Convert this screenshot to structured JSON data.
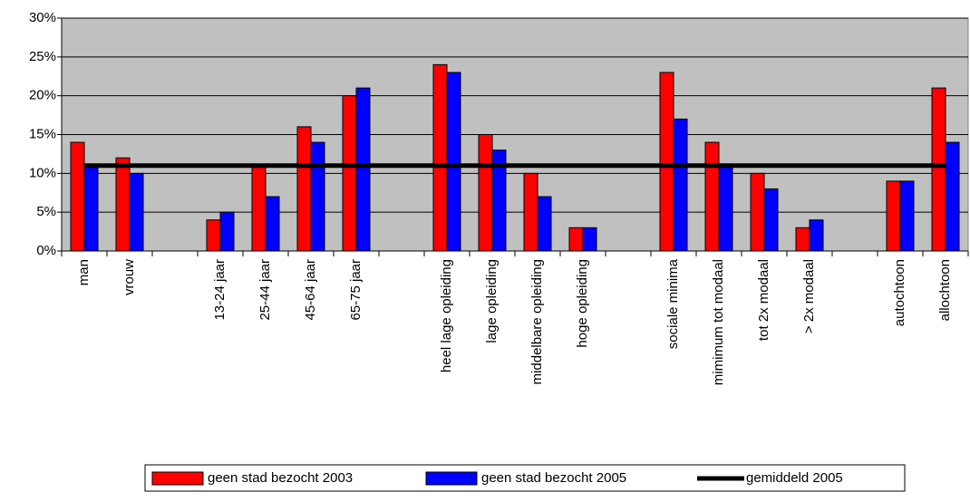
{
  "chart_data": {
    "type": "bar",
    "categories": [
      "man",
      "vrouw",
      null,
      "13-24 jaar",
      "25-44 jaar",
      "45-64 jaar",
      "65-75 jaar",
      null,
      "heel lage opleiding",
      "lage opleiding",
      "middelbare opleiding",
      "hoge opleiding",
      null,
      "sociale minima",
      "mimimum tot modaal",
      "tot 2x modaal",
      "> 2x modaal",
      null,
      "autochtoon",
      "allochtoon"
    ],
    "series": [
      {
        "name": "geen stad bezocht 2003",
        "color": "#ff0000",
        "values": [
          14,
          12,
          null,
          4,
          11,
          16,
          20,
          null,
          24,
          15,
          10,
          3,
          null,
          23,
          14,
          10,
          3,
          null,
          9,
          21
        ]
      },
      {
        "name": "geen stad bezocht 2005",
        "color": "#0000ff",
        "values": [
          11,
          10,
          null,
          5,
          7,
          14,
          21,
          null,
          23,
          13,
          7,
          3,
          null,
          17,
          11,
          8,
          4,
          null,
          9,
          14
        ]
      },
      {
        "name": "gemiddeld 2005",
        "type": "line",
        "color": "#000000",
        "values": [
          11,
          11,
          11,
          11,
          11,
          11,
          11,
          11,
          11,
          11,
          11,
          11,
          11,
          11,
          11,
          11,
          11,
          11,
          11,
          11
        ]
      }
    ],
    "ylim": [
      0,
      30
    ],
    "yticks": [
      {
        "value": 0,
        "label": "0%"
      },
      {
        "value": 5,
        "label": "5%"
      },
      {
        "value": 10,
        "label": "10%"
      },
      {
        "value": 15,
        "label": "15%"
      },
      {
        "value": 20,
        "label": "20%"
      },
      {
        "value": 25,
        "label": "25%"
      },
      {
        "value": 30,
        "label": "30%"
      }
    ],
    "grid": true,
    "legend": "bottom",
    "background": "#c0c0c0"
  }
}
